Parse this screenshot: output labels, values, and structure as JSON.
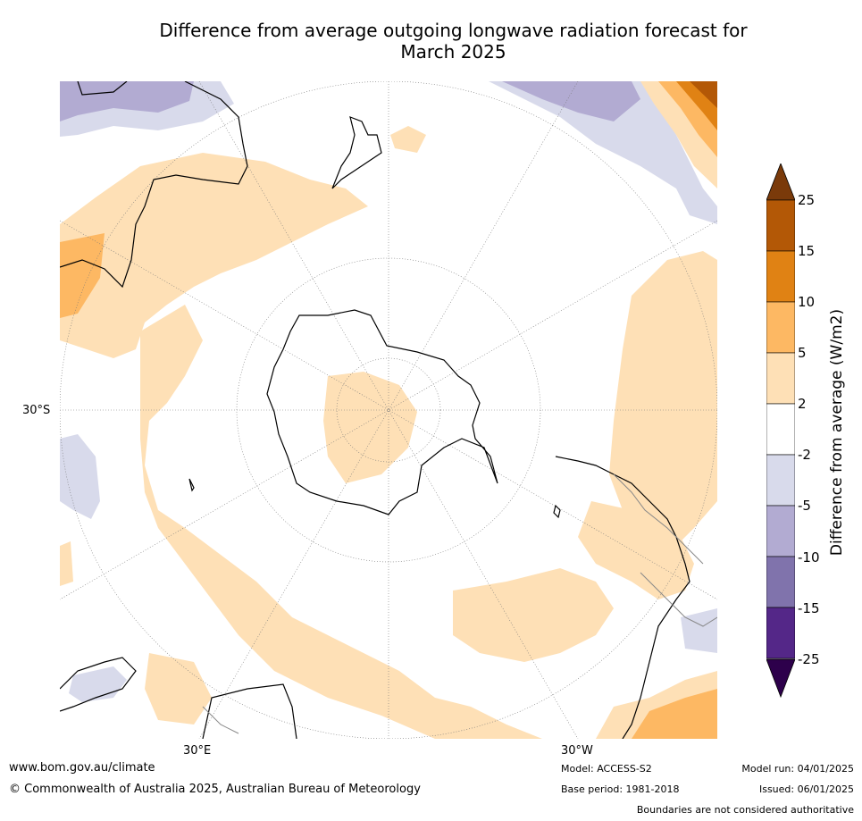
{
  "title_line1": "Difference from average outgoing longwave radiation forecast for",
  "title_line2": "March 2025",
  "map_labels": {
    "lat_30s": "30°S",
    "lon_30e": "30°E",
    "lon_30w": "30°W"
  },
  "colorbar": {
    "label": "Difference from average (W/m2)",
    "ticks": [
      "25",
      "15",
      "10",
      "5",
      "2",
      "-2",
      "-5",
      "-10",
      "-15",
      "-25"
    ],
    "colors": [
      "#7a3a0a",
      "#b35806",
      "#e08214",
      "#fdb863",
      "#fee0b6",
      "#ffffff",
      "#d8daeb",
      "#b2abd2",
      "#8073ac",
      "#542788",
      "#2d004b"
    ]
  },
  "footer": {
    "website": "www.bom.gov.au/climate",
    "copyright": "© Commonwealth of Australia 2025, Australian Bureau of Meteorology",
    "model": "Model: ACCESS-S2",
    "base_period": "Base period: 1981-2018",
    "model_run": "Model run: 04/01/2025",
    "issued": "Issued: 06/01/2025",
    "boundaries": "Boundaries are not considered authoritative"
  }
}
